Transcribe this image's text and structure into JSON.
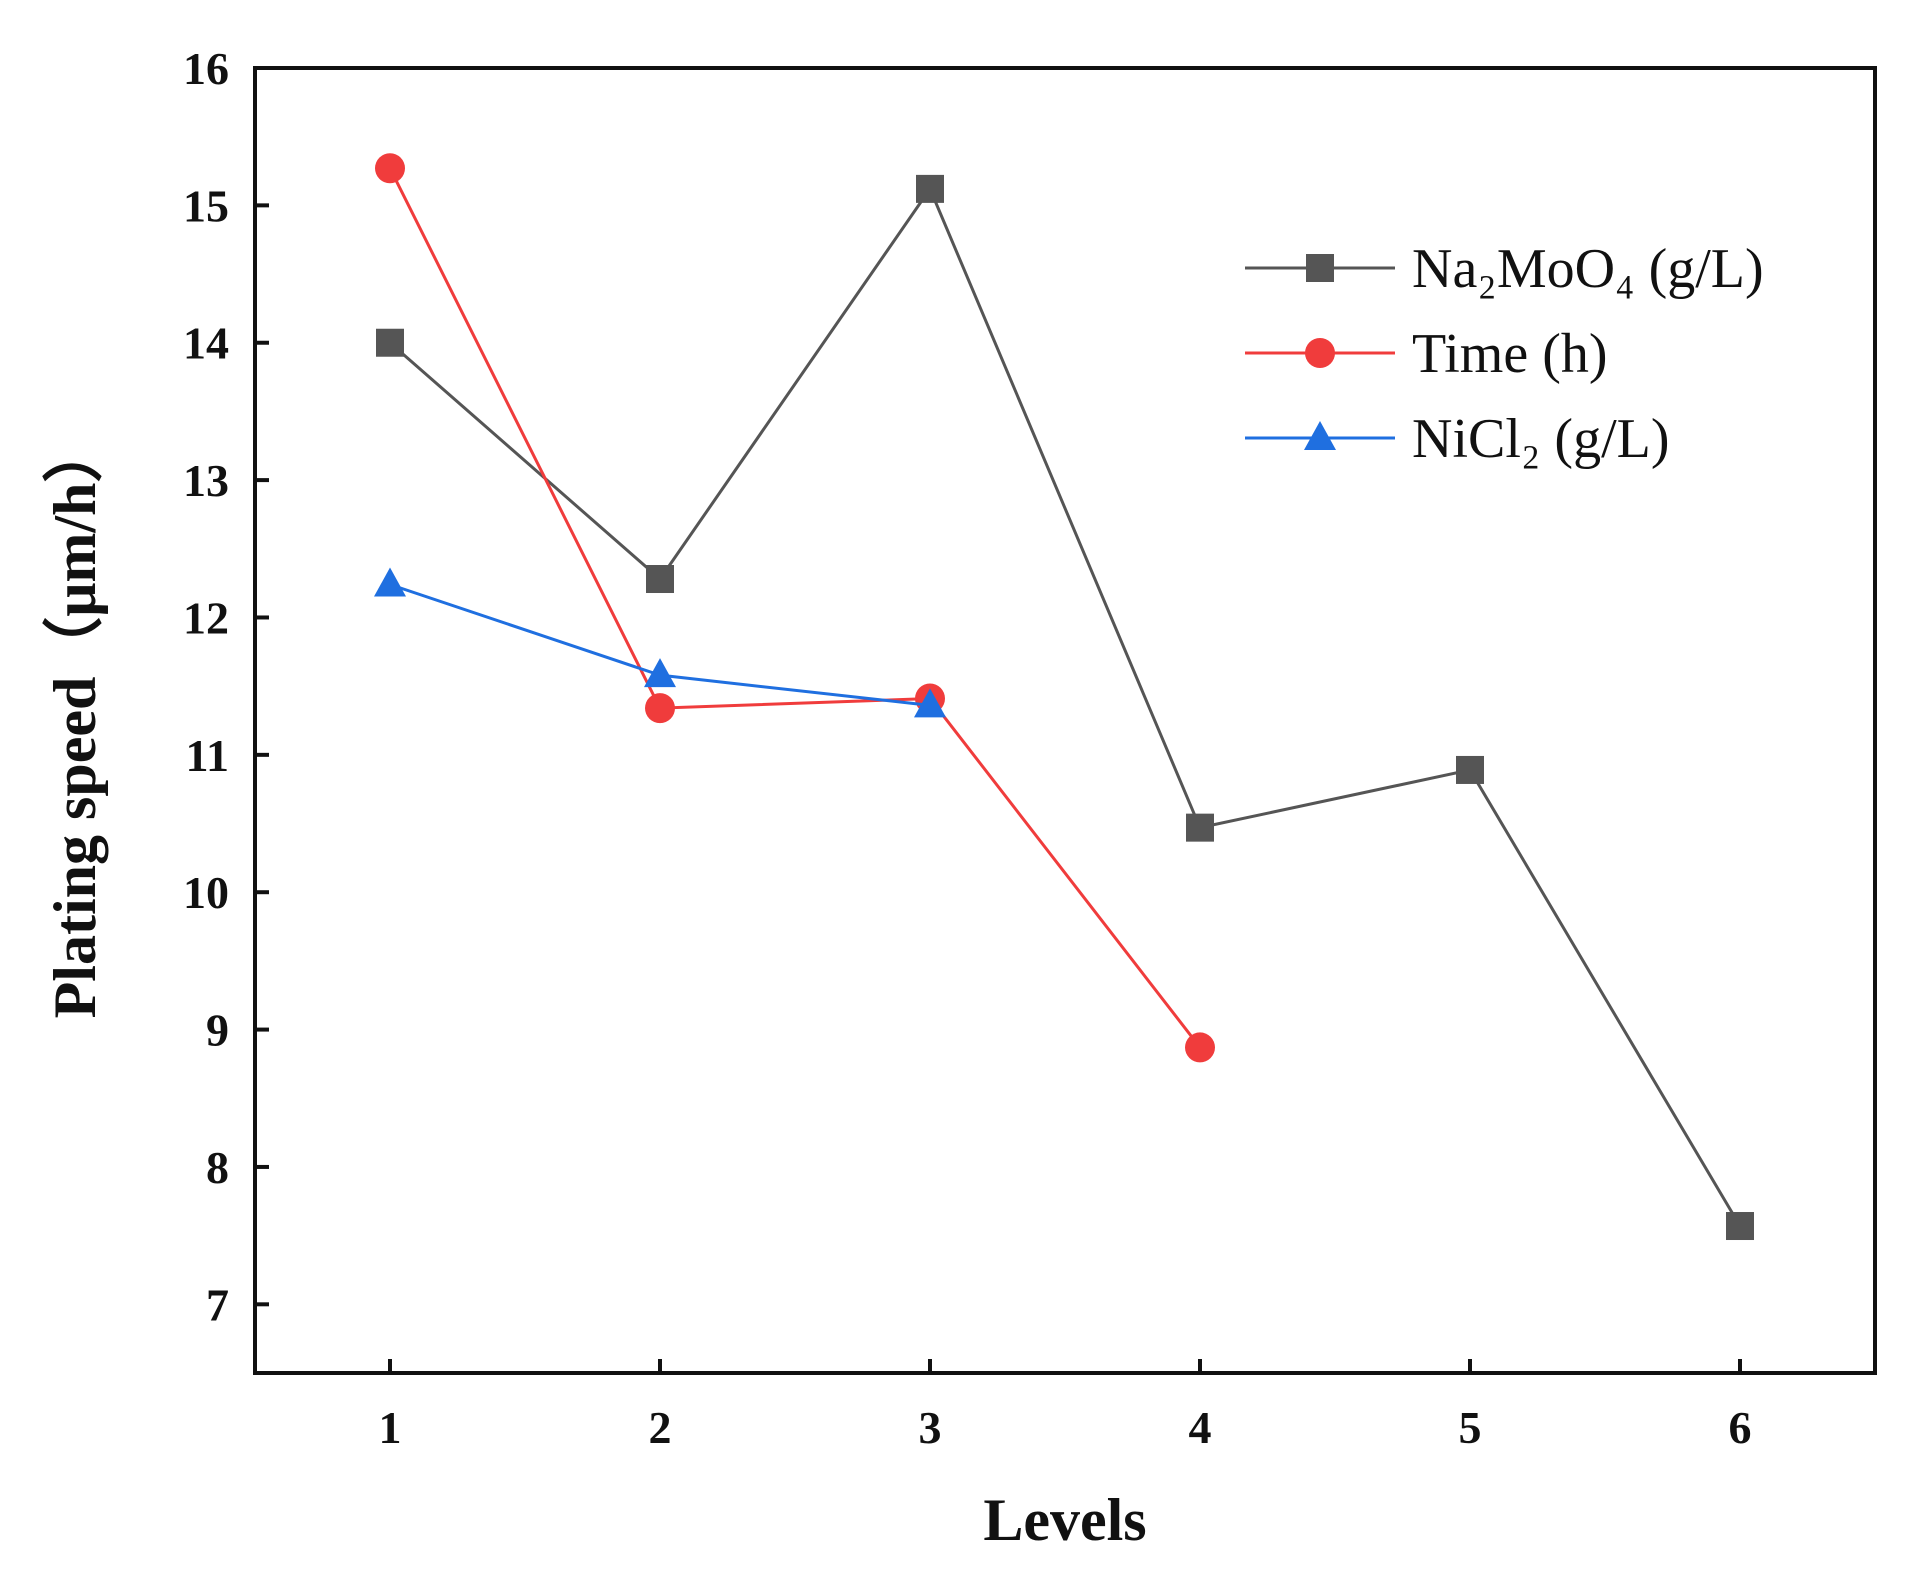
{
  "chart_data": {
    "type": "line",
    "title": "",
    "xlabel": "Levels",
    "ylabel": "Plating speed（μm/h）",
    "xlim": [
      0.5,
      6.5
    ],
    "ylim": [
      6.5,
      16
    ],
    "x_ticks": [
      1,
      2,
      3,
      4,
      5,
      6
    ],
    "y_ticks": [
      7,
      8,
      9,
      10,
      11,
      12,
      13,
      14,
      15,
      16
    ],
    "grid": false,
    "legend_position": "top-right",
    "series": [
      {
        "name": "Na₂MoO₄ (g/L)",
        "color": "#555555",
        "marker": "square",
        "x": [
          1,
          2,
          3,
          4,
          5,
          6
        ],
        "values": [
          14.0,
          12.28,
          15.12,
          10.47,
          10.89,
          7.57
        ]
      },
      {
        "name": "Time (h)",
        "color": "#f03c3c",
        "marker": "circle",
        "x": [
          1,
          2,
          3,
          4
        ],
        "values": [
          15.27,
          11.34,
          11.41,
          8.87
        ]
      },
      {
        "name": "NiCl₂ (g/L)",
        "color": "#1f6fe0",
        "marker": "triangle",
        "x": [
          1,
          2,
          3
        ],
        "values": [
          12.24,
          11.58,
          11.36
        ]
      }
    ]
  }
}
